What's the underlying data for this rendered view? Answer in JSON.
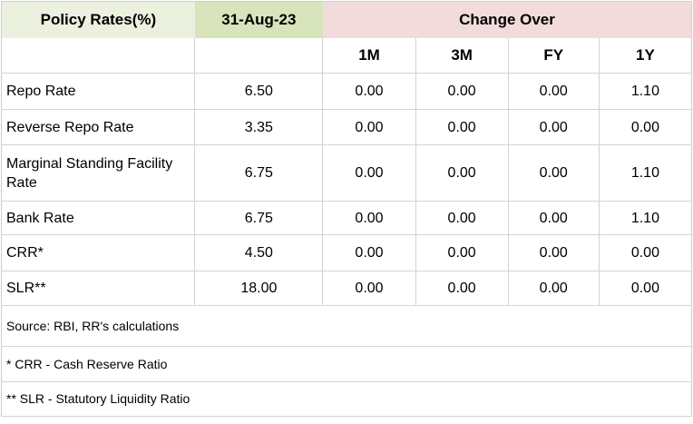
{
  "chart_data": {
    "type": "table",
    "header": {
      "label_col": "Policy Rates(%)",
      "date_col": "31-Aug-23",
      "group_col": "Change Over",
      "sub_columns": [
        "1M",
        "3M",
        "FY",
        "1Y"
      ]
    },
    "rows": [
      {
        "label": "Repo Rate",
        "value": "6.50",
        "changes": [
          "0.00",
          "0.00",
          "0.00",
          "1.10"
        ]
      },
      {
        "label": "Reverse Repo Rate",
        "value": "3.35",
        "changes": [
          "0.00",
          "0.00",
          "0.00",
          "0.00"
        ]
      },
      {
        "label": "Marginal Standing Facility Rate",
        "value": "6.75",
        "changes": [
          "0.00",
          "0.00",
          "0.00",
          "1.10"
        ]
      },
      {
        "label": "Bank Rate",
        "value": "6.75",
        "changes": [
          "0.00",
          "0.00",
          "0.00",
          "1.10"
        ]
      },
      {
        "label": "CRR*",
        "value": "4.50",
        "changes": [
          "0.00",
          "0.00",
          "0.00",
          "0.00"
        ]
      },
      {
        "label": "SLR**",
        "value": "18.00",
        "changes": [
          "0.00",
          "0.00",
          "0.00",
          "0.00"
        ]
      }
    ],
    "footnotes": [
      "Source: RBI, RR's calculations",
      "* CRR - Cash Reserve Ratio",
      "** SLR - Statutory Liquidity Ratio"
    ],
    "colors": {
      "label_header_bg": "#EBF1DE",
      "date_header_bg": "#D8E4BC",
      "change_header_bg": "#F2DCDB",
      "grid_border": "#D4D4D4",
      "text": "#000000"
    }
  }
}
